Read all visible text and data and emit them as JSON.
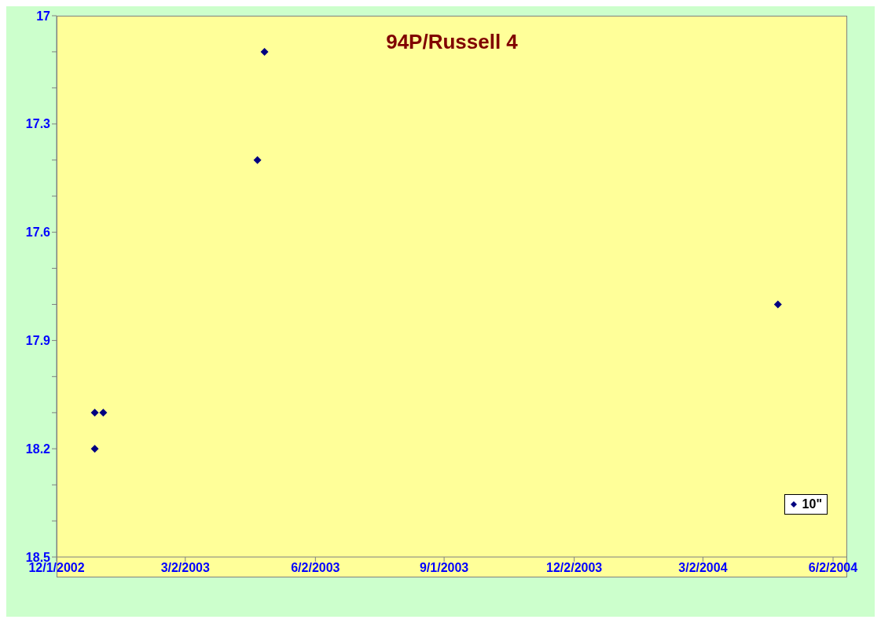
{
  "chart_data": {
    "type": "scatter",
    "title": "94P/Russell 4",
    "x": [
      "2002-12-28",
      "2003-01-03",
      "2002-12-28",
      "2003-04-22",
      "2003-04-27",
      "2004-04-24"
    ],
    "series": [
      {
        "name": "10\"",
        "color": "#000080",
        "values": [
          18.1,
          18.1,
          18.2,
          17.4,
          17.1,
          17.8
        ]
      }
    ],
    "xlim": [
      "2002-12-01",
      "2004-06-12"
    ],
    "xticks": [
      {
        "value": "2002-12-01",
        "label": "12/1/2002"
      },
      {
        "value": "2003-03-02",
        "label": "3/2/2003"
      },
      {
        "value": "2003-06-02",
        "label": "6/2/2003"
      },
      {
        "value": "2003-09-01",
        "label": "9/1/2003"
      },
      {
        "value": "2003-12-02",
        "label": "12/2/2003"
      },
      {
        "value": "2004-03-02",
        "label": "3/2/2004"
      },
      {
        "value": "2004-06-02",
        "label": "6/2/2004"
      }
    ],
    "ylim": [
      18.5,
      17
    ],
    "yticks": [
      17,
      {
        "value": 17.1,
        "label": null
      },
      {
        "value": 17.2,
        "label": null
      },
      17.3,
      {
        "value": 17.4,
        "label": null
      },
      {
        "value": 17.5,
        "label": null
      },
      17.6,
      {
        "value": 17.7,
        "label": null
      },
      {
        "value": 17.8,
        "label": null
      },
      17.9,
      {
        "value": 18.0,
        "label": null
      },
      {
        "value": 18.1,
        "label": null
      },
      18.2,
      {
        "value": 18.3,
        "label": null
      },
      {
        "value": 18.4,
        "label": null
      },
      18.5
    ],
    "marker": "diamond",
    "legend": "bottom right",
    "grid": false
  }
}
